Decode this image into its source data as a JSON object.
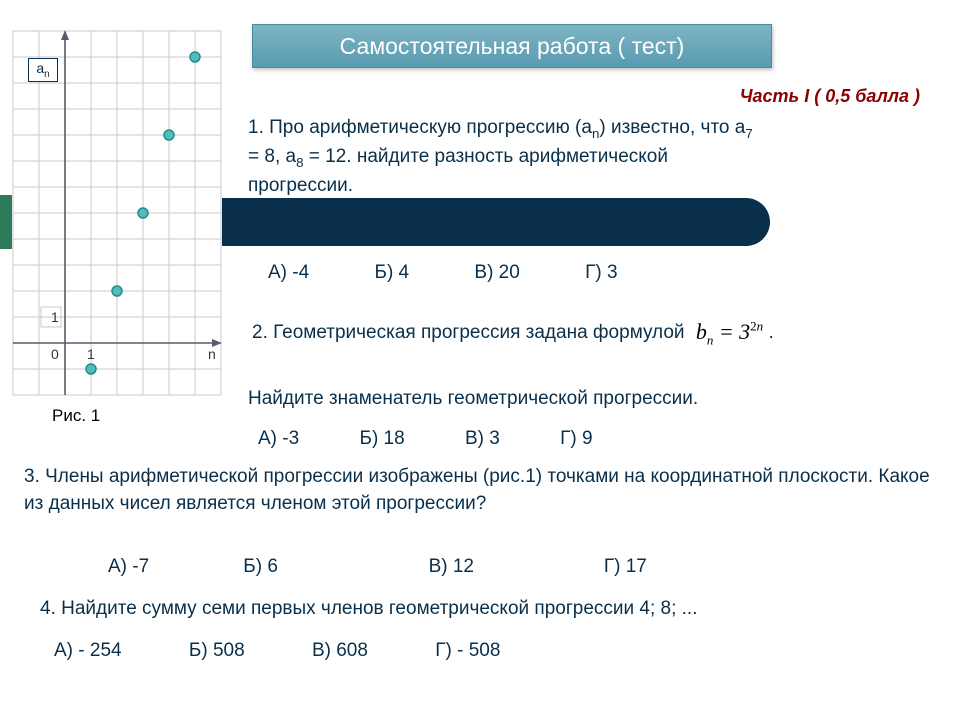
{
  "title": "Самостоятельная работа ( тест)",
  "part_label": "Часть I  ( 0,5 балла )",
  "an_label_html": "a<sub>n</sub>",
  "fig_caption": "Рис. 1",
  "chart": {
    "type": "scatter",
    "grid_color": "#c8c8d0",
    "axis_color": "#5a5a6a",
    "bg_color": "#ffffff",
    "point_fill": "#4dbdbd",
    "point_stroke": "#2a8a8a",
    "point_radius": 5,
    "cell": 26,
    "cols": 8,
    "rows": 14,
    "origin_col": 2,
    "origin_row": 12,
    "x_label": "n",
    "y_unit_label": "1",
    "y_zero_label": "0",
    "x_tick_label": "1",
    "points": [
      {
        "x": 1,
        "y": -1
      },
      {
        "x": 2,
        "y": 2
      },
      {
        "x": 3,
        "y": 5
      },
      {
        "x": 4,
        "y": 8
      },
      {
        "x": 5,
        "y": 11
      }
    ]
  },
  "q1": {
    "text_html": "1. Про арифметическую прогрессию (a<sub>n</sub>) известно, что a<sub>7</sub> = 8, a<sub>8</sub> = 12. найдите разность арифметической прогрессии.",
    "answers": [
      "А) -4",
      "Б) 4",
      "В) 20",
      "Г) 3"
    ]
  },
  "q2": {
    "line1": "2. Геометрическая прогрессия задана формулой",
    "formula_html": "b<sub>n</sub> = 3<sup>2<i>n</i></sup>",
    "line2": "Найдите знаменатель геометрической прогрессии.",
    "answers": [
      "А) -3",
      "Б) 18",
      "В)  3",
      "Г) 9"
    ]
  },
  "q3": {
    "text": "3. Члены арифметической прогрессии изображены (рис.1) точками на координатной плоскости. Какое из данных чисел является членом этой прогрессии?",
    "answers": [
      "А)  -7",
      "Б)  6",
      "В) 12",
      "Г)  17"
    ]
  },
  "q4": {
    "text": "4. Найдите сумму семи первых членов геометрической прогрессии 4; 8; ...",
    "answers": [
      "А) - 254",
      "Б) 508",
      "В) 608",
      "Г) - 508"
    ]
  }
}
